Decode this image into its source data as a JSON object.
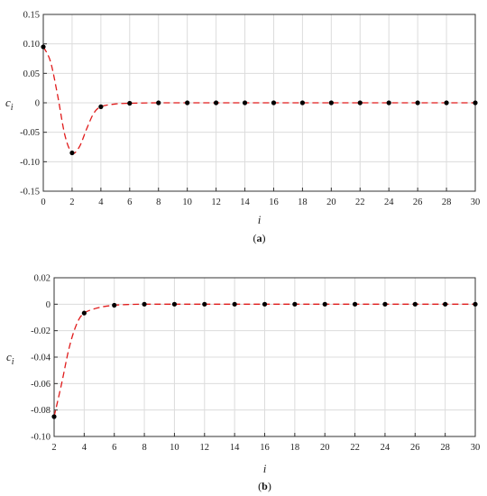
{
  "chart_data": [
    {
      "type": "line",
      "panel_label": "(a)",
      "panel_letter": "a",
      "xlabel": "i",
      "ylabel": "c",
      "ylabel_sub": "i",
      "xlim": [
        0,
        30
      ],
      "ylim": [
        -0.15,
        0.15
      ],
      "x_ticks": [
        0,
        2,
        4,
        6,
        8,
        10,
        12,
        14,
        16,
        18,
        20,
        22,
        24,
        26,
        28,
        30
      ],
      "x_tick_labels": [
        "0",
        "2",
        "4",
        "6",
        "8",
        "10",
        "12",
        "14",
        "16",
        "18",
        "20",
        "22",
        "24",
        "26",
        "28",
        "30"
      ],
      "y_ticks": [
        -0.15,
        -0.1,
        -0.05,
        0,
        0.05,
        0.1,
        0.15
      ],
      "y_tick_labels": [
        "-0.15",
        "-0.10",
        "-0.05",
        "0",
        "0.05",
        "0.10",
        "0.15"
      ],
      "grid": true,
      "series": [
        {
          "style": "points",
          "color": "#000000",
          "x": [
            0,
            2,
            4,
            6,
            8,
            10,
            12,
            14,
            16,
            18,
            20,
            22,
            24,
            26,
            28,
            30
          ],
          "values": [
            0.095,
            -0.085,
            -0.0067,
            -0.0008,
            0,
            0,
            0,
            0,
            0,
            0,
            0,
            0,
            0,
            0,
            0,
            0
          ]
        },
        {
          "style": "dashed-curve",
          "color": "#e01b1b",
          "x": [
            0,
            0.5,
            1,
            1.5,
            2,
            2.5,
            3,
            3.5,
            4,
            5,
            6,
            8,
            10,
            30
          ],
          "values": [
            0.095,
            0.07,
            0.012,
            -0.055,
            -0.085,
            -0.075,
            -0.045,
            -0.018,
            -0.0067,
            -0.002,
            -0.0008,
            0,
            0,
            0
          ]
        }
      ]
    },
    {
      "type": "line",
      "panel_label": "(b)",
      "panel_letter": "b",
      "xlabel": "i",
      "ylabel": "c",
      "ylabel_sub": "i",
      "xlim": [
        2,
        30
      ],
      "ylim": [
        -0.1,
        0.02
      ],
      "x_ticks": [
        2,
        4,
        6,
        8,
        10,
        12,
        14,
        16,
        18,
        20,
        22,
        24,
        26,
        28,
        30
      ],
      "x_tick_labels": [
        "2",
        "4",
        "6",
        "8",
        "10",
        "12",
        "14",
        "16",
        "18",
        "20",
        "22",
        "24",
        "26",
        "28",
        "30"
      ],
      "y_ticks": [
        -0.1,
        -0.08,
        -0.06,
        -0.04,
        -0.02,
        0,
        0.02
      ],
      "y_tick_labels": [
        "-0.10",
        "-0.08",
        "-0.06",
        "-0.04",
        "-0.02",
        "0",
        "0.02"
      ],
      "grid": true,
      "series": [
        {
          "style": "points",
          "color": "#000000",
          "x": [
            2,
            4,
            6,
            8,
            10,
            12,
            14,
            16,
            18,
            20,
            22,
            24,
            26,
            28,
            30
          ],
          "values": [
            -0.085,
            -0.0067,
            -0.0008,
            0,
            0,
            0,
            0,
            0,
            0,
            0,
            0,
            0,
            0,
            0,
            0
          ]
        },
        {
          "style": "dashed-curve",
          "color": "#e01b1b",
          "x": [
            2,
            2.5,
            3,
            3.5,
            4,
            5,
            6,
            7,
            8,
            10,
            30
          ],
          "values": [
            -0.085,
            -0.06,
            -0.033,
            -0.015,
            -0.0067,
            -0.0025,
            -0.0008,
            -0.0002,
            0,
            0,
            0
          ]
        }
      ]
    }
  ]
}
